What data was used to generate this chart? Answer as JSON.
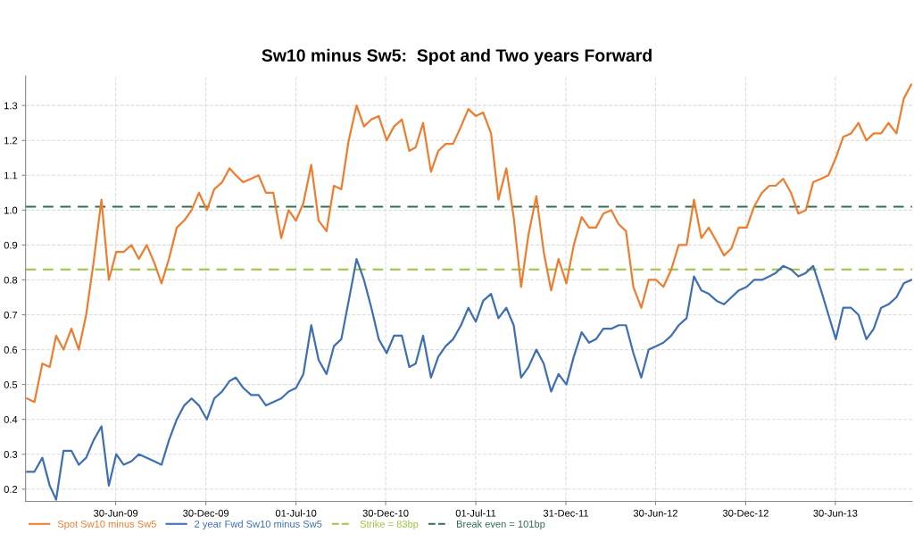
{
  "chart_data": {
    "type": "line",
    "title": "Sw10 minus Sw5:  Spot and Two years Forward",
    "x": [
      "2009-01-01",
      "2009-01-16",
      "2009-02-01",
      "2009-02-16",
      "2009-03-01",
      "2009-03-16",
      "2009-04-01",
      "2009-04-16",
      "2009-05-01",
      "2009-05-16",
      "2009-06-01",
      "2009-06-16",
      "2009-07-01",
      "2009-07-16",
      "2009-08-01",
      "2009-08-16",
      "2009-09-01",
      "2009-09-16",
      "2009-10-01",
      "2009-10-16",
      "2009-11-01",
      "2009-11-16",
      "2009-12-01",
      "2009-12-16",
      "2010-01-01",
      "2010-01-16",
      "2010-02-01",
      "2010-02-16",
      "2010-03-01",
      "2010-03-16",
      "2010-04-01",
      "2010-04-16",
      "2010-05-01",
      "2010-05-16",
      "2010-06-01",
      "2010-06-16",
      "2010-07-01",
      "2010-07-16",
      "2010-08-01",
      "2010-08-16",
      "2010-09-01",
      "2010-09-16",
      "2010-10-01",
      "2010-10-16",
      "2010-11-01",
      "2010-11-16",
      "2010-12-01",
      "2010-12-16",
      "2011-01-01",
      "2011-01-16",
      "2011-02-01",
      "2011-02-16",
      "2011-03-01",
      "2011-03-16",
      "2011-04-01",
      "2011-04-16",
      "2011-05-01",
      "2011-05-16",
      "2011-06-01",
      "2011-06-16",
      "2011-07-01",
      "2011-07-16",
      "2011-08-01",
      "2011-08-16",
      "2011-09-01",
      "2011-09-16",
      "2011-10-01",
      "2011-10-16",
      "2011-11-01",
      "2011-11-16",
      "2011-12-01",
      "2011-12-16",
      "2012-01-01",
      "2012-01-16",
      "2012-02-01",
      "2012-02-16",
      "2012-03-01",
      "2012-03-16",
      "2012-04-01",
      "2012-04-16",
      "2012-05-01",
      "2012-05-16",
      "2012-06-01",
      "2012-06-16",
      "2012-07-01",
      "2012-07-16",
      "2012-08-01",
      "2012-08-16",
      "2012-09-01",
      "2012-09-16",
      "2012-10-01",
      "2012-10-16",
      "2012-11-01",
      "2012-11-16",
      "2012-12-01",
      "2012-12-16",
      "2013-01-01",
      "2013-01-16",
      "2013-02-01",
      "2013-02-16",
      "2013-03-01",
      "2013-03-16",
      "2013-04-01",
      "2013-04-16",
      "2013-05-01",
      "2013-05-16",
      "2013-06-01",
      "2013-06-16",
      "2013-07-01",
      "2013-07-16",
      "2013-08-01",
      "2013-08-16",
      "2013-09-01",
      "2013-09-16",
      "2013-10-01",
      "2013-10-16",
      "2013-11-01",
      "2013-11-16",
      "2013-12-01"
    ],
    "series": [
      {
        "name": "Spot Sw10 minus Sw5",
        "color": "#ee7d2f",
        "values": [
          0.46,
          0.45,
          0.56,
          0.55,
          0.64,
          0.6,
          0.66,
          0.6,
          0.7,
          0.85,
          1.03,
          0.8,
          0.88,
          0.88,
          0.9,
          0.86,
          0.9,
          0.85,
          0.79,
          0.86,
          0.95,
          0.97,
          1.0,
          1.05,
          1.0,
          1.06,
          1.08,
          1.12,
          1.1,
          1.08,
          1.09,
          1.1,
          1.05,
          1.05,
          0.92,
          1.0,
          0.97,
          1.02,
          1.13,
          0.97,
          0.94,
          1.07,
          1.06,
          1.2,
          1.3,
          1.24,
          1.26,
          1.27,
          1.2,
          1.24,
          1.26,
          1.17,
          1.18,
          1.25,
          1.11,
          1.17,
          1.19,
          1.19,
          1.24,
          1.29,
          1.27,
          1.28,
          1.22,
          1.03,
          1.12,
          0.98,
          0.78,
          0.93,
          1.04,
          0.88,
          0.77,
          0.86,
          0.79,
          0.9,
          0.98,
          0.95,
          0.95,
          0.99,
          1.0,
          0.96,
          0.94,
          0.78,
          0.72,
          0.8,
          0.8,
          0.78,
          0.83,
          0.9,
          0.9,
          1.03,
          0.92,
          0.95,
          0.91,
          0.87,
          0.89,
          0.95,
          0.95,
          1.01,
          1.05,
          1.07,
          1.07,
          1.09,
          1.05,
          0.99,
          1.0,
          1.08,
          1.09,
          1.1,
          1.15,
          1.21,
          1.22,
          1.25,
          1.2,
          1.22,
          1.22,
          1.25,
          1.22,
          1.32,
          1.36
        ]
      },
      {
        "name": "2 year Fwd Sw10 minus Sw5",
        "color": "#3e6fb3",
        "values": [
          0.25,
          0.25,
          0.29,
          0.21,
          0.17,
          0.31,
          0.31,
          0.27,
          0.29,
          0.34,
          0.38,
          0.21,
          0.3,
          0.27,
          0.28,
          0.3,
          0.29,
          0.28,
          0.27,
          0.34,
          0.4,
          0.44,
          0.46,
          0.44,
          0.4,
          0.46,
          0.48,
          0.51,
          0.52,
          0.49,
          0.47,
          0.47,
          0.44,
          0.45,
          0.46,
          0.48,
          0.49,
          0.53,
          0.67,
          0.57,
          0.53,
          0.61,
          0.63,
          0.74,
          0.86,
          0.8,
          0.72,
          0.63,
          0.59,
          0.64,
          0.64,
          0.55,
          0.56,
          0.64,
          0.52,
          0.58,
          0.61,
          0.63,
          0.67,
          0.72,
          0.68,
          0.74,
          0.76,
          0.69,
          0.72,
          0.67,
          0.52,
          0.55,
          0.6,
          0.56,
          0.48,
          0.53,
          0.5,
          0.58,
          0.65,
          0.62,
          0.63,
          0.66,
          0.66,
          0.67,
          0.67,
          0.59,
          0.52,
          0.6,
          0.61,
          0.62,
          0.64,
          0.67,
          0.69,
          0.81,
          0.77,
          0.76,
          0.74,
          0.73,
          0.75,
          0.77,
          0.78,
          0.8,
          0.8,
          0.81,
          0.82,
          0.84,
          0.83,
          0.81,
          0.82,
          0.84,
          0.77,
          0.7,
          0.63,
          0.72,
          0.72,
          0.7,
          0.63,
          0.66,
          0.72,
          0.73,
          0.75,
          0.79,
          0.8
        ]
      }
    ],
    "ref_lines": [
      {
        "axis": "y",
        "value": 0.83,
        "label": "Strike = 83bp",
        "color": "#9cc43c",
        "line_style": "dashed"
      },
      {
        "axis": "y",
        "value": 1.01,
        "label": "Break even = 101bp",
        "color": "#2e6e4e",
        "line_style": "dashed"
      }
    ],
    "xlim": [
      "2008-12-29",
      "2013-12-03"
    ],
    "xticks": [
      {
        "value": "2009-06-30",
        "label": "30-Jun-09"
      },
      {
        "value": "2009-12-30",
        "label": "30-Dec-09"
      },
      {
        "value": "2010-07-01",
        "label": "01-Jul-10"
      },
      {
        "value": "2010-12-30",
        "label": "30-Dec-10"
      },
      {
        "value": "2011-07-01",
        "label": "01-Jul-11"
      },
      {
        "value": "2011-12-31",
        "label": "31-Dec-11"
      },
      {
        "value": "2012-06-30",
        "label": "30-Jun-12"
      },
      {
        "value": "2012-12-30",
        "label": "30-Dec-12"
      },
      {
        "value": "2013-06-30",
        "label": "30-Jun-13"
      }
    ],
    "ylim": [
      0.165,
      1.385
    ],
    "yticks": [
      0.2,
      0.3,
      0.4,
      0.5,
      0.6,
      0.7,
      0.8,
      0.9,
      {
        "value": 1.0,
        "label": "1.0"
      },
      1.1,
      1.2,
      1.3
    ],
    "grid": true,
    "legend": "bottom",
    "line_style": "solid",
    "marker": "none"
  }
}
